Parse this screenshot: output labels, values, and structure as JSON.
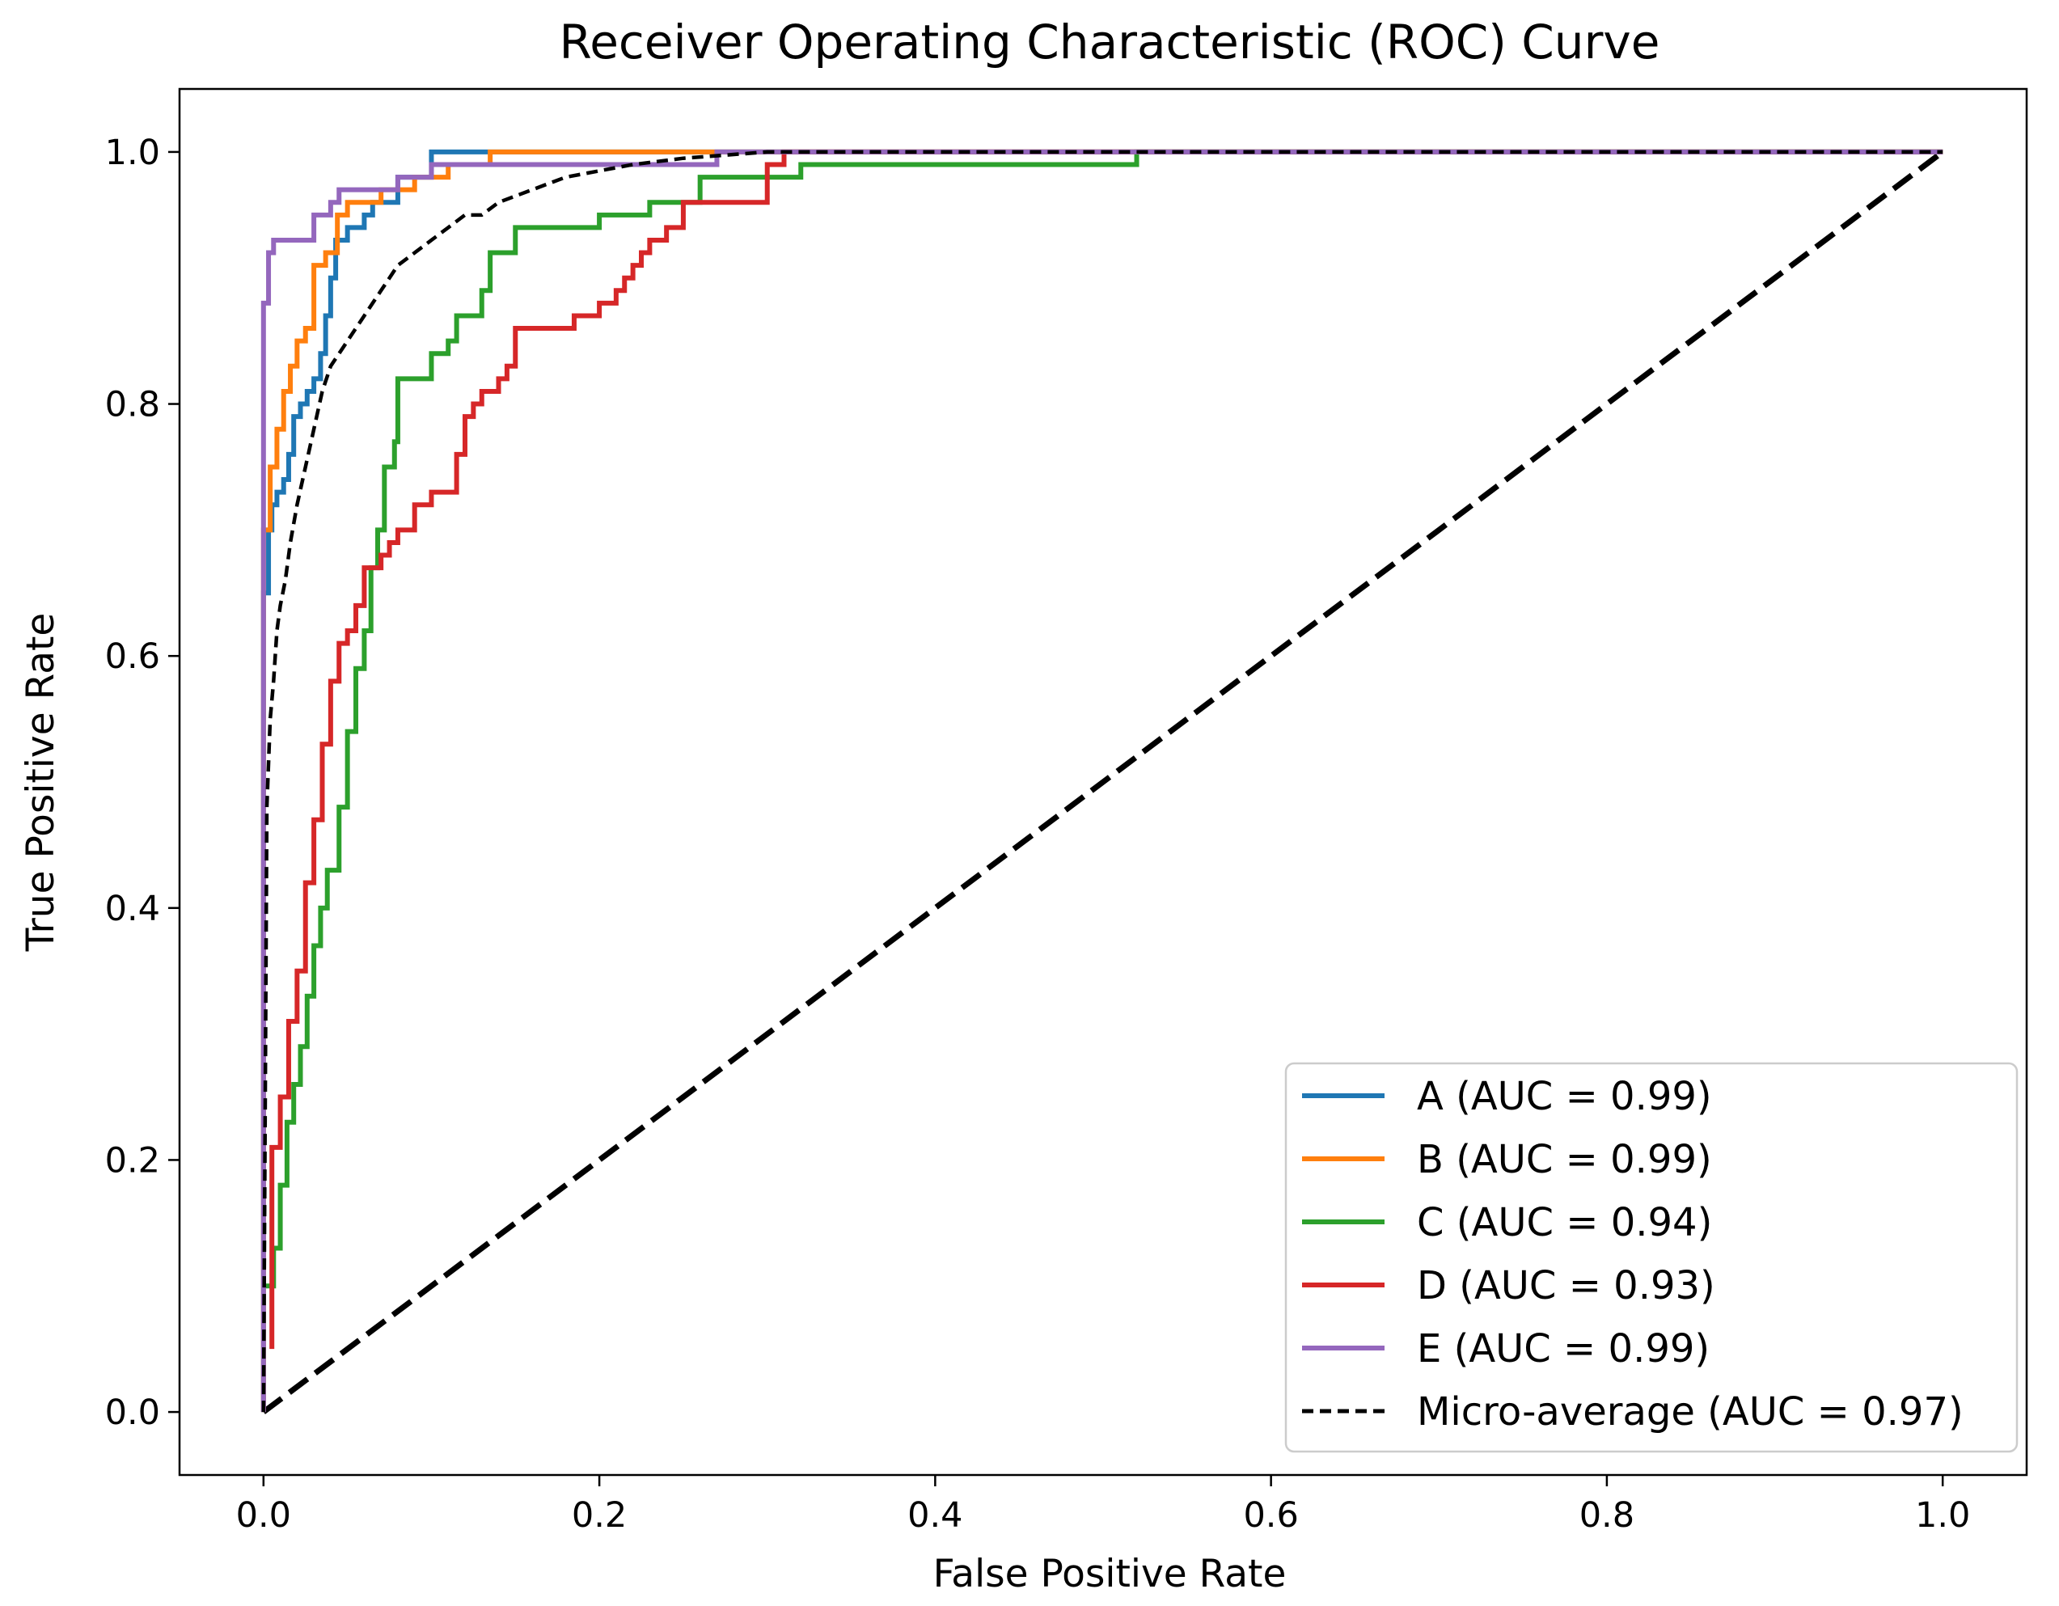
{
  "chart_data": {
    "type": "line",
    "title": "Receiver Operating Characteristic (ROC) Curve",
    "xlabel": "False Positive Rate",
    "ylabel": "True Positive Rate",
    "xlim": [
      -0.05,
      1.05
    ],
    "ylim": [
      -0.05,
      1.05
    ],
    "xticks": [
      0.0,
      0.2,
      0.4,
      0.6,
      0.8,
      1.0
    ],
    "yticks": [
      0.0,
      0.2,
      0.4,
      0.6,
      0.8,
      1.0
    ],
    "xtick_labels": [
      "0.0",
      "0.2",
      "0.4",
      "0.6",
      "0.8",
      "1.0"
    ],
    "ytick_labels": [
      "0.0",
      "0.2",
      "0.4",
      "0.6",
      "0.8",
      "1.0"
    ],
    "grid": false,
    "legend_position": "lower-right",
    "series": [
      {
        "name": "A (AUC = 0.99)",
        "label": "A",
        "auc": 0.99,
        "color": "#1f77b4",
        "style": "solid",
        "x": [
          0,
          0,
          0.003,
          0.003,
          0.005,
          0.005,
          0.008,
          0.008,
          0.012,
          0.012,
          0.015,
          0.015,
          0.018,
          0.018,
          0.022,
          0.022,
          0.026,
          0.026,
          0.03,
          0.03,
          0.034,
          0.034,
          0.037,
          0.037,
          0.04,
          0.04,
          0.043,
          0.043,
          0.05,
          0.05,
          0.06,
          0.06,
          0.065,
          0.065,
          0.08,
          0.08,
          0.1,
          0.1,
          0.12,
          0.12,
          0.14,
          0.14,
          1.0
        ],
        "y": [
          0,
          0.65,
          0.65,
          0.7,
          0.7,
          0.72,
          0.72,
          0.73,
          0.73,
          0.74,
          0.74,
          0.76,
          0.76,
          0.79,
          0.79,
          0.8,
          0.8,
          0.81,
          0.81,
          0.82,
          0.82,
          0.84,
          0.84,
          0.87,
          0.87,
          0.9,
          0.9,
          0.93,
          0.93,
          0.94,
          0.94,
          0.95,
          0.95,
          0.96,
          0.96,
          0.98,
          0.98,
          1.0,
          1.0,
          1.0,
          1.0,
          1.0,
          1.0
        ]
      },
      {
        "name": "B (AUC = 0.99)",
        "label": "B",
        "auc": 0.99,
        "color": "#ff7f0e",
        "style": "solid",
        "x": [
          0,
          0,
          0.004,
          0.004,
          0.008,
          0.008,
          0.012,
          0.012,
          0.016,
          0.016,
          0.02,
          0.02,
          0.025,
          0.025,
          0.03,
          0.03,
          0.037,
          0.037,
          0.044,
          0.044,
          0.05,
          0.05,
          0.07,
          0.07,
          0.09,
          0.09,
          0.11,
          0.11,
          0.135,
          0.135,
          0.27,
          1.0
        ],
        "y": [
          0,
          0.7,
          0.7,
          0.75,
          0.75,
          0.78,
          0.78,
          0.81,
          0.81,
          0.83,
          0.83,
          0.85,
          0.85,
          0.86,
          0.86,
          0.91,
          0.91,
          0.92,
          0.92,
          0.95,
          0.95,
          0.96,
          0.96,
          0.97,
          0.97,
          0.98,
          0.98,
          0.99,
          0.99,
          1.0,
          1.0,
          1.0
        ]
      },
      {
        "name": "C (AUC = 0.94)",
        "label": "C",
        "auc": 0.94,
        "color": "#2ca02c",
        "style": "solid",
        "x": [
          0,
          0.006,
          0.006,
          0.01,
          0.01,
          0.014,
          0.014,
          0.018,
          0.018,
          0.022,
          0.022,
          0.026,
          0.026,
          0.03,
          0.03,
          0.034,
          0.034,
          0.038,
          0.038,
          0.045,
          0.045,
          0.05,
          0.05,
          0.055,
          0.055,
          0.06,
          0.06,
          0.064,
          0.064,
          0.068,
          0.068,
          0.072,
          0.072,
          0.078,
          0.078,
          0.08,
          0.08,
          0.1,
          0.1,
          0.11,
          0.11,
          0.115,
          0.115,
          0.13,
          0.13,
          0.135,
          0.135,
          0.15,
          0.15,
          0.2,
          0.2,
          0.23,
          0.23,
          0.26,
          0.26,
          0.32,
          0.32,
          0.52,
          0.52,
          1.0
        ],
        "y": [
          0.1,
          0.1,
          0.13,
          0.13,
          0.18,
          0.18,
          0.23,
          0.23,
          0.26,
          0.26,
          0.29,
          0.29,
          0.33,
          0.33,
          0.37,
          0.37,
          0.4,
          0.4,
          0.43,
          0.43,
          0.48,
          0.48,
          0.54,
          0.54,
          0.59,
          0.59,
          0.62,
          0.62,
          0.67,
          0.67,
          0.7,
          0.7,
          0.75,
          0.75,
          0.77,
          0.77,
          0.82,
          0.82,
          0.84,
          0.84,
          0.85,
          0.85,
          0.87,
          0.87,
          0.89,
          0.89,
          0.92,
          0.92,
          0.94,
          0.94,
          0.95,
          0.95,
          0.96,
          0.96,
          0.98,
          0.98,
          0.99,
          0.99,
          1.0,
          1.0
        ]
      },
      {
        "name": "D (AUC = 0.93)",
        "label": "D",
        "auc": 0.93,
        "color": "#d62728",
        "style": "solid",
        "x": [
          0.005,
          0.005,
          0.01,
          0.01,
          0.015,
          0.015,
          0.02,
          0.02,
          0.025,
          0.025,
          0.03,
          0.03,
          0.035,
          0.035,
          0.04,
          0.04,
          0.045,
          0.045,
          0.05,
          0.05,
          0.055,
          0.055,
          0.06,
          0.06,
          0.07,
          0.07,
          0.075,
          0.075,
          0.08,
          0.08,
          0.09,
          0.09,
          0.1,
          0.1,
          0.115,
          0.115,
          0.12,
          0.12,
          0.125,
          0.125,
          0.13,
          0.13,
          0.14,
          0.14,
          0.145,
          0.145,
          0.15,
          0.15,
          0.185,
          0.185,
          0.2,
          0.2,
          0.21,
          0.21,
          0.215,
          0.215,
          0.22,
          0.22,
          0.225,
          0.225,
          0.23,
          0.23,
          0.24,
          0.24,
          0.25,
          0.25,
          0.3,
          0.3,
          0.31,
          0.31,
          1.0
        ],
        "y": [
          0.05,
          0.21,
          0.21,
          0.25,
          0.25,
          0.31,
          0.31,
          0.35,
          0.35,
          0.42,
          0.42,
          0.47,
          0.47,
          0.53,
          0.53,
          0.58,
          0.58,
          0.61,
          0.61,
          0.62,
          0.62,
          0.64,
          0.64,
          0.67,
          0.67,
          0.68,
          0.68,
          0.69,
          0.69,
          0.7,
          0.7,
          0.72,
          0.72,
          0.73,
          0.73,
          0.76,
          0.76,
          0.79,
          0.79,
          0.8,
          0.8,
          0.81,
          0.81,
          0.82,
          0.82,
          0.83,
          0.83,
          0.86,
          0.86,
          0.87,
          0.87,
          0.88,
          0.88,
          0.89,
          0.89,
          0.9,
          0.9,
          0.91,
          0.91,
          0.92,
          0.92,
          0.93,
          0.93,
          0.94,
          0.94,
          0.96,
          0.96,
          0.99,
          0.99,
          1.0,
          1.0
        ]
      },
      {
        "name": "E (AUC = 0.99)",
        "label": "E",
        "auc": 0.99,
        "color": "#9467bd",
        "style": "solid",
        "x": [
          0,
          0,
          0.003,
          0.003,
          0.006,
          0.006,
          0.01,
          0.01,
          0.03,
          0.03,
          0.04,
          0.04,
          0.045,
          0.045,
          0.08,
          0.08,
          0.1,
          0.1,
          0.27,
          0.27,
          1.0
        ],
        "y": [
          0,
          0.88,
          0.88,
          0.92,
          0.92,
          0.93,
          0.93,
          0.93,
          0.93,
          0.95,
          0.95,
          0.96,
          0.96,
          0.97,
          0.97,
          0.98,
          0.98,
          0.99,
          0.99,
          1.0,
          1.0
        ]
      },
      {
        "name": "Micro-average (AUC = 0.97)",
        "label": "Micro-average",
        "auc": 0.97,
        "color": "#000000",
        "style": "dashed",
        "x": [
          0,
          0.002,
          0.004,
          0.006,
          0.008,
          0.01,
          0.013,
          0.016,
          0.02,
          0.025,
          0.03,
          0.035,
          0.04,
          0.045,
          0.05,
          0.055,
          0.06,
          0.07,
          0.08,
          0.09,
          0.1,
          0.11,
          0.12,
          0.13,
          0.14,
          0.16,
          0.18,
          0.2,
          0.22,
          0.25,
          0.3,
          1.0
        ],
        "y": [
          0,
          0.48,
          0.55,
          0.58,
          0.62,
          0.64,
          0.66,
          0.69,
          0.72,
          0.75,
          0.78,
          0.81,
          0.83,
          0.84,
          0.85,
          0.86,
          0.87,
          0.89,
          0.91,
          0.92,
          0.93,
          0.94,
          0.95,
          0.95,
          0.96,
          0.97,
          0.98,
          0.985,
          0.99,
          0.995,
          1.0,
          1.0
        ]
      },
      {
        "name": "chance",
        "label": "",
        "color": "#000000",
        "style": "dashed-thick",
        "in_legend": false,
        "x": [
          0,
          1.0
        ],
        "y": [
          0,
          1.0
        ]
      }
    ]
  }
}
